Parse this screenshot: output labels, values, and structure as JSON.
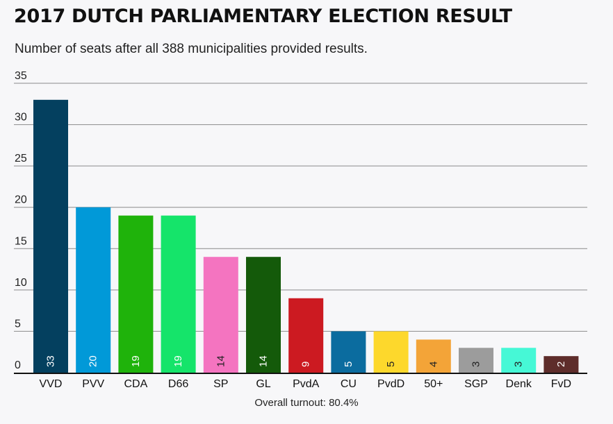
{
  "header": {
    "title": "2017 DUTCH PARLIAMENTARY ELECTION RESULT",
    "subtitle": "Number of seats after all 388 municipalities provided results."
  },
  "footer": {
    "turnout": "Overall turnout: 80.4%"
  },
  "chart_data": {
    "type": "bar",
    "title": "2017 DUTCH PARLIAMENTARY ELECTION RESULT",
    "subtitle": "Number of seats after all 388 municipalities provided results.",
    "xlabel": "",
    "ylabel": "",
    "ylim": [
      0,
      35
    ],
    "yticks": [
      0,
      5,
      10,
      15,
      20,
      25,
      30,
      35
    ],
    "grid": true,
    "categories": [
      "VVD",
      "PVV",
      "CDA",
      "D66",
      "SP",
      "GL",
      "PvdA",
      "CU",
      "PvdD",
      "50+",
      "SGP",
      "Denk",
      "FvD"
    ],
    "values": [
      33,
      20,
      19,
      19,
      14,
      14,
      9,
      5,
      5,
      4,
      3,
      3,
      2
    ],
    "colors": [
      "#04405f",
      "#0199d8",
      "#1fb30b",
      "#15e46a",
      "#f474c0",
      "#145a0a",
      "#cc1a21",
      "#0b6c9f",
      "#fdd82c",
      "#f3a438",
      "#9c9c9c",
      "#46f8d6",
      "#5e2d2b"
    ],
    "label_colors": [
      "#ffffff",
      "#ffffff",
      "#ffffff",
      "#ffffff",
      "#222222",
      "#ffffff",
      "#ffffff",
      "#ffffff",
      "#222222",
      "#222222",
      "#222222",
      "#222222",
      "#ffffff"
    ]
  }
}
